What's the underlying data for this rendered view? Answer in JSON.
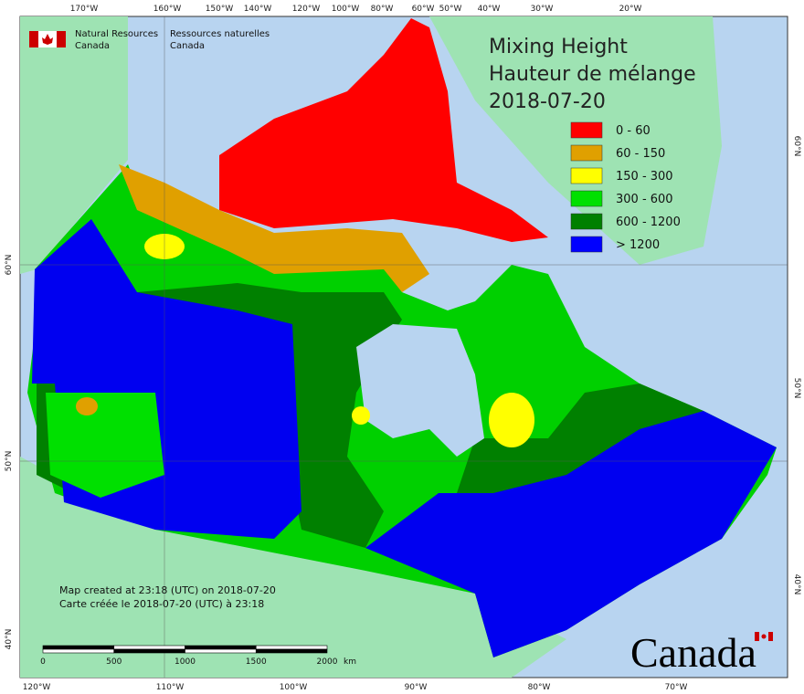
{
  "top_axis": [
    "170°W",
    "160°W",
    "150°W",
    "140°W",
    "120°W",
    "100°W",
    "80°W",
    "60°W",
    "50°W",
    "40°W",
    "30°W",
    "20°W"
  ],
  "bottom_axis": [
    "120°W",
    "110°W",
    "100°W",
    "90°W",
    "80°W",
    "70°W"
  ],
  "left_axis": [
    "60°N",
    "50°N",
    "40°N"
  ],
  "right_axis": [
    "60°N",
    "50°N",
    "40°N"
  ],
  "header": {
    "department_en": [
      "Natural Resources",
      "Canada"
    ],
    "department_fr": [
      "Ressources naturelles",
      "Canada"
    ]
  },
  "title": [
    "Mixing Height",
    "Hauteur de mélange",
    "2018-07-20"
  ],
  "legend": [
    {
      "label": "0 - 60",
      "color": "#ff0000"
    },
    {
      "label": "60 - 150",
      "color": "#e0a000"
    },
    {
      "label": "150 - 300",
      "color": "#ffff00"
    },
    {
      "label": "300 - 600",
      "color": "#00e000"
    },
    {
      "label": "600 - 1200",
      "color": "#008000"
    },
    {
      "label": "> 1200",
      "color": "#0000ff"
    }
  ],
  "notes": [
    "Map created at 23:18 (UTC) on 2018-07-20",
    "Carte créée le 2018-07-20 (UTC) à 23:18"
  ],
  "scale_bar": {
    "labels": [
      "0",
      "500",
      "1000",
      "1500",
      "2000"
    ],
    "unit": "km"
  },
  "wordmark": "Canada"
}
